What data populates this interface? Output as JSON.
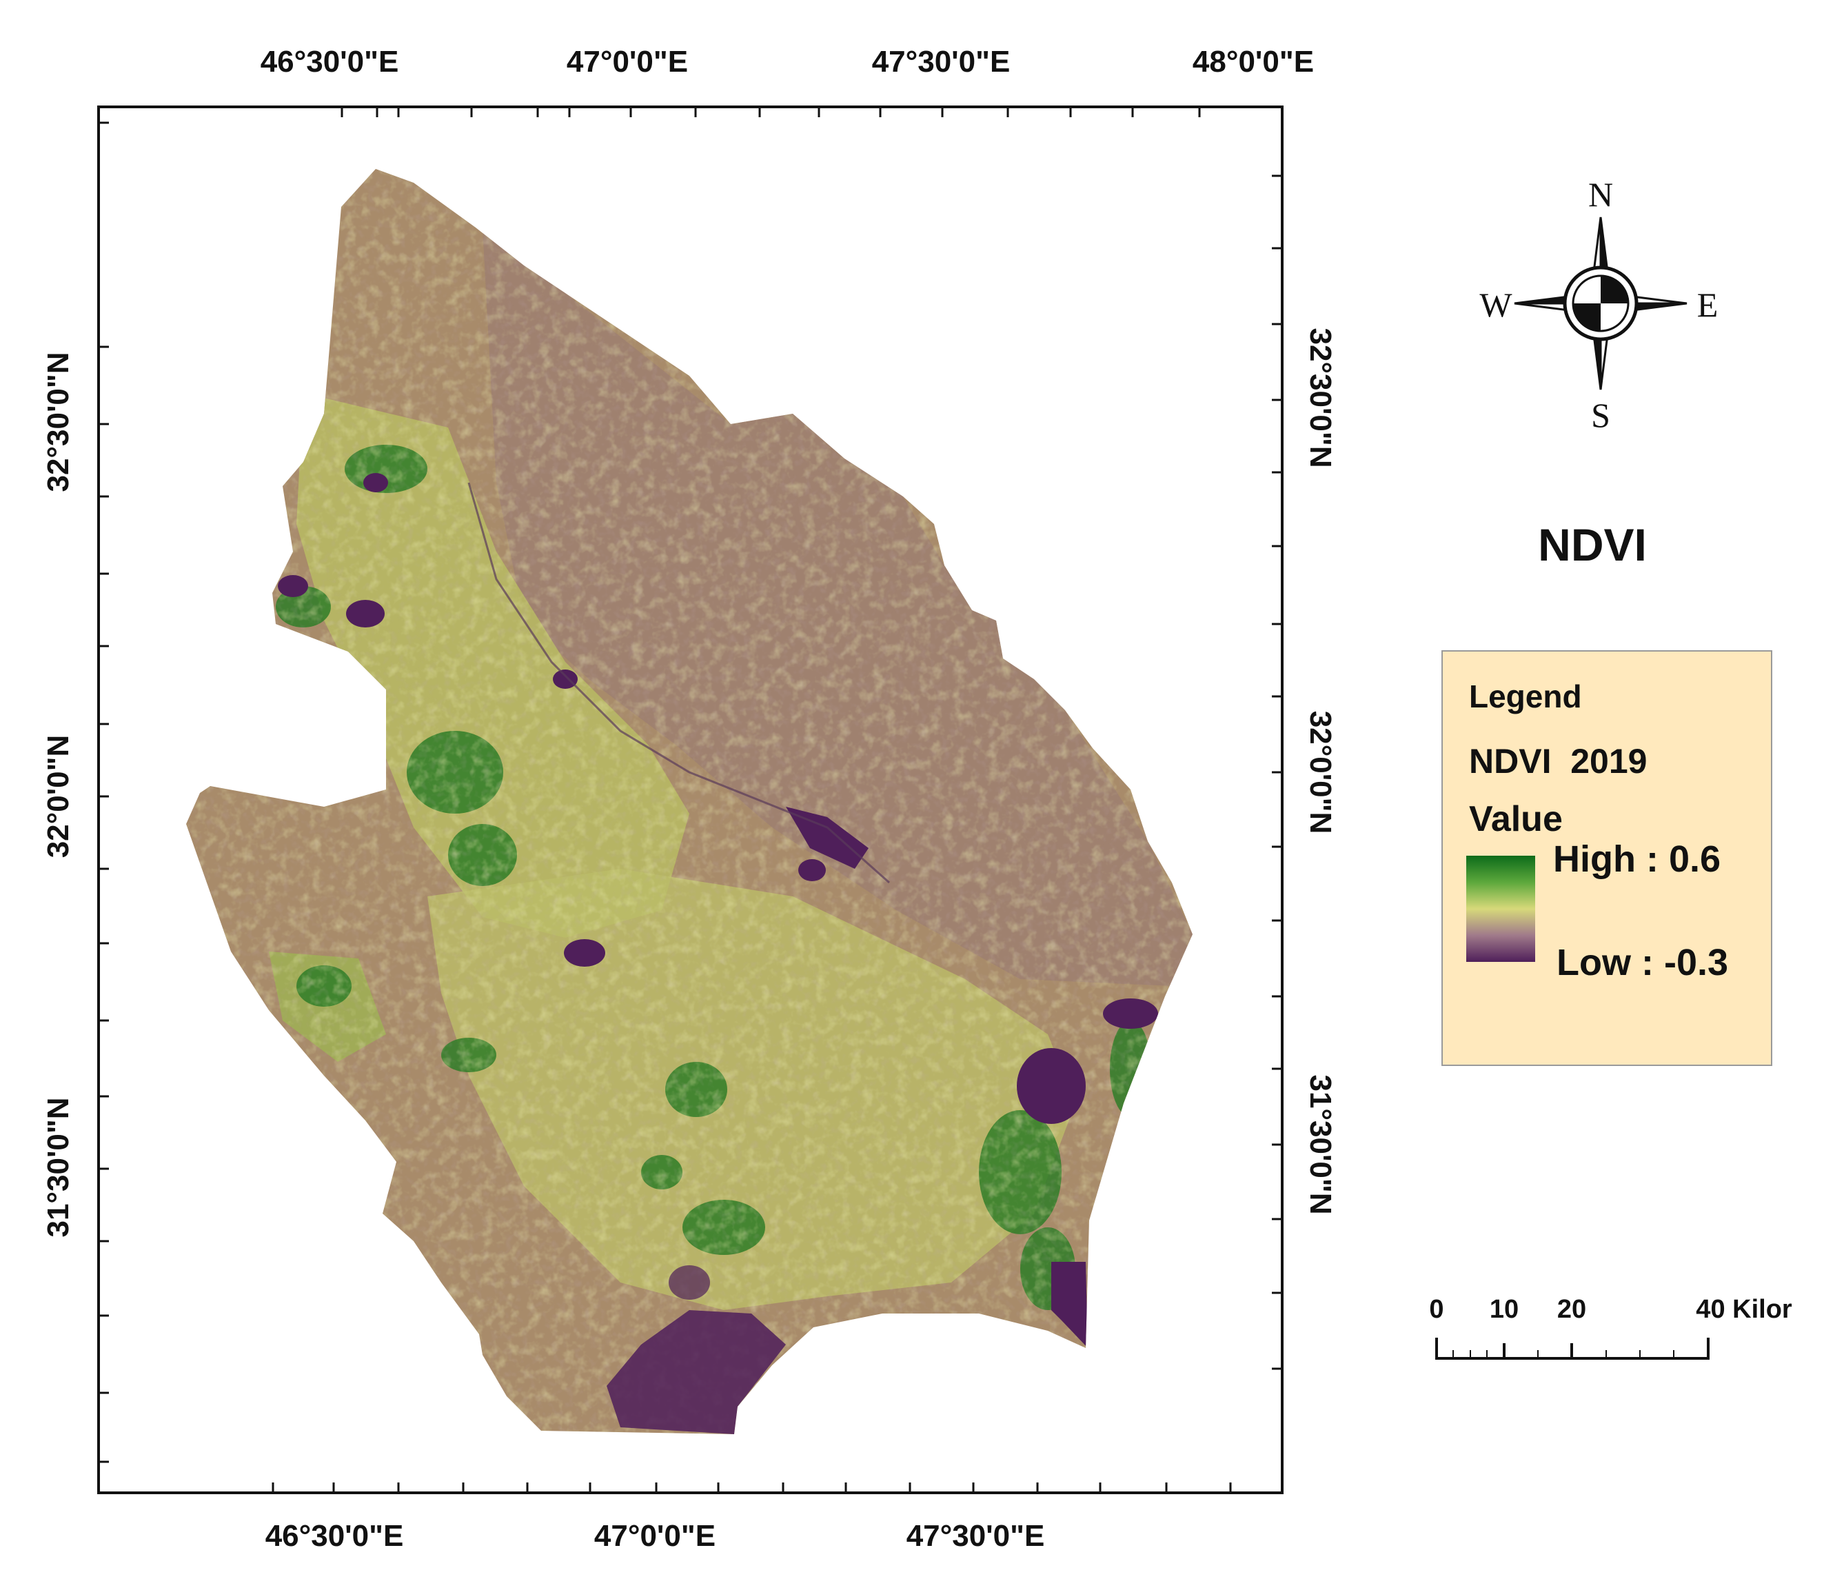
{
  "title": "NDVI",
  "graticule": {
    "top_labels": [
      "46°30'0\"E",
      "47°0'0\"E",
      "47°30'0\"E",
      "48°0'0\"E"
    ],
    "bottom_labels": [
      "46°30'0\"E",
      "47°0'0\"E",
      "47°30'0\"E"
    ],
    "left_labels": [
      "32°30'0\"N",
      "32°0'0\"N",
      "31°30'0\"N"
    ],
    "right_labels": [
      "32°30'0\"N",
      "32°0'0\"N",
      "31°30'0\"N"
    ]
  },
  "compass": {
    "north": "N",
    "south": "S",
    "east": "E",
    "west": "W"
  },
  "legend": {
    "heading": "Legend",
    "layer": "NDVI  2019",
    "field": "Value",
    "high_label": "High : 0.6",
    "low_label": "Low : -0.3",
    "high_value": 0.6,
    "low_value": -0.3
  },
  "scale_bar": {
    "labels": [
      "0",
      "10",
      "20",
      "40 Kilor"
    ],
    "values": [
      0,
      10,
      20,
      40
    ]
  },
  "colors": {
    "high": "#0c6b1a",
    "mid": "#d7d97a",
    "bare": "#a88b6a",
    "low": "#4f1f5a",
    "legend_bg": "#ffe9bd"
  }
}
